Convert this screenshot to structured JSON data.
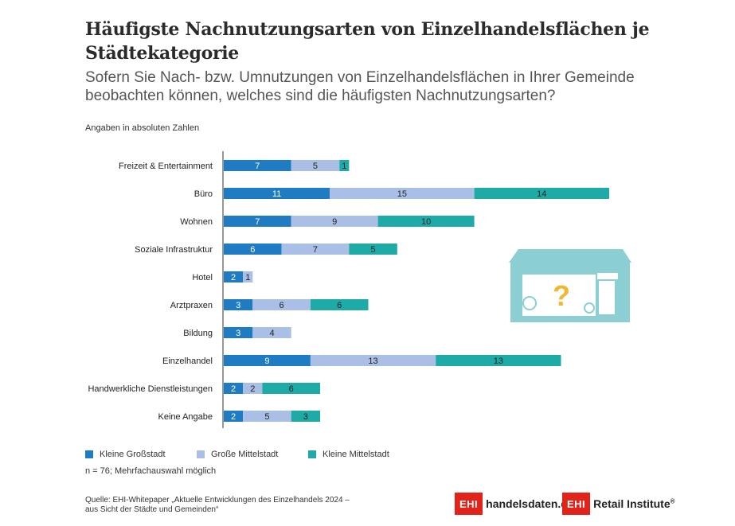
{
  "title": "Häufigste Nachnutzungsarten von Einzelhandelsflächen je Städtekategorie",
  "subtitle": "Sofern Sie Nach- bzw. Umnutzungen von Einzelhandelsflächen in Ihrer Gemeinde beobachten können, welches sind die häufigsten Nachnutzungsarten?",
  "unit_note": "Angaben in absoluten Zahlen",
  "sample_note": "n = 76; Mehrfachauswahl möglich",
  "source": "Quelle: EHI-Whitepaper „Aktuelle Entwicklungen des Einzelhandels 2024 – aus Sicht der Städte und Gemeinden“",
  "logos": {
    "left_box": "EHI",
    "left_text": "handelsdaten.de",
    "right_box": "EHI",
    "right_text": "Retail Institute",
    "right_mark": "®"
  },
  "colors": {
    "kleine_grossstadt": "#1f7cc2",
    "grosse_mittelstadt": "#a9bfe6",
    "kleine_mittelstadt": "#1eaaa6",
    "icon": "#8ccfd3",
    "question": "#f2b731"
  },
  "icon": "store-with-question-mark-icon",
  "chart_data": {
    "type": "bar",
    "orientation": "horizontal",
    "stacked": true,
    "categories": [
      "Freizeit & Entertainment",
      "Büro",
      "Wohnen",
      "Soziale Infrastruktur",
      "Hotel",
      "Arztpraxen",
      "Bildung",
      "Einzelhandel",
      "Handwerkliche Dienstleistungen",
      "Keine Angabe"
    ],
    "series": [
      {
        "name": "Kleine Großstadt",
        "values": [
          7,
          11,
          7,
          6,
          2,
          3,
          3,
          9,
          2,
          2
        ]
      },
      {
        "name": "Große Mittelstadt",
        "values": [
          5,
          15,
          9,
          7,
          1,
          6,
          4,
          13,
          2,
          5
        ]
      },
      {
        "name": "Kleine Mittelstadt",
        "values": [
          1,
          14,
          10,
          5,
          0,
          6,
          0,
          13,
          6,
          3
        ]
      }
    ],
    "legend_position": "bottom",
    "grid": false
  }
}
